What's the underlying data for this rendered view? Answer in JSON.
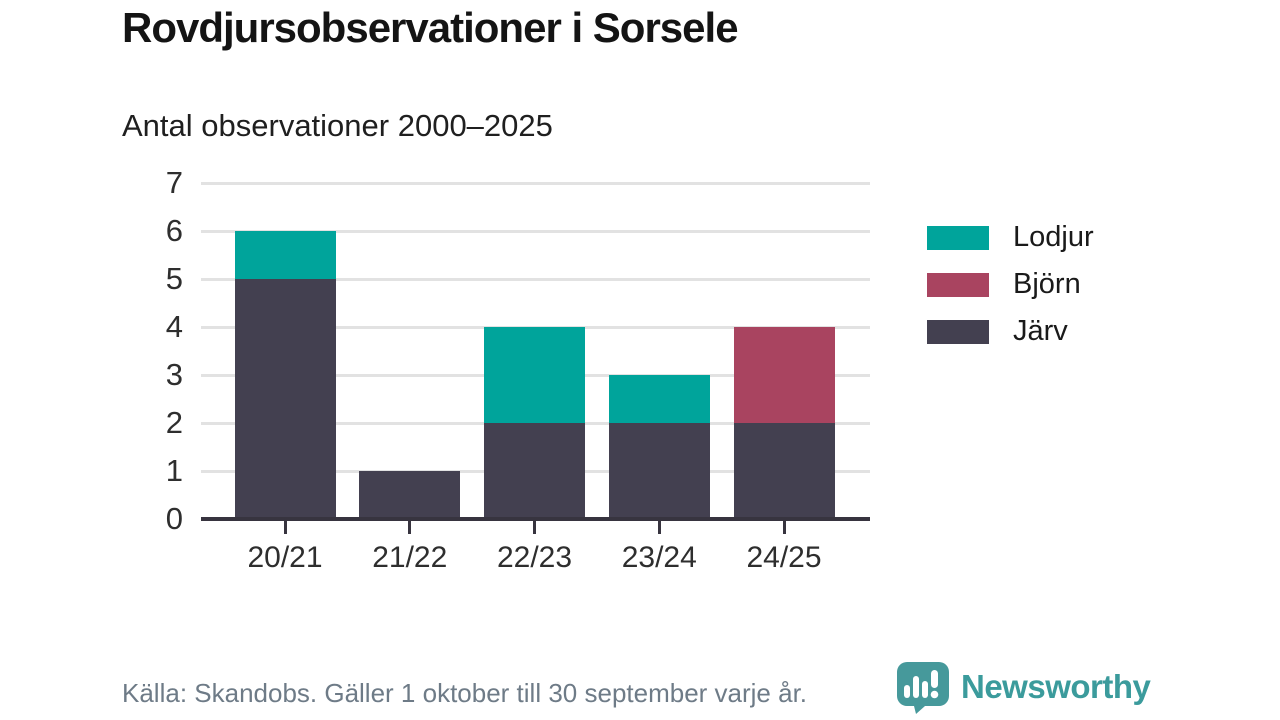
{
  "header": {
    "title": "Rovdjursobservationer i Sorsele",
    "subtitle": "Antal observationer 2000–2025"
  },
  "chart_data": {
    "type": "bar",
    "stacked": true,
    "title": "Rovdjursobservationer i Sorsele",
    "subtitle": "Antal observationer 2000–2025",
    "categories": [
      "20/21",
      "21/22",
      "22/23",
      "23/24",
      "24/25"
    ],
    "series": [
      {
        "name": "Lodjur",
        "color": "#00a49b",
        "values": [
          1,
          0,
          2,
          1,
          0
        ]
      },
      {
        "name": "Björn",
        "color": "#a94460",
        "values": [
          0,
          0,
          0,
          0,
          2
        ]
      },
      {
        "name": "Järv",
        "color": "#434050",
        "values": [
          5,
          1,
          2,
          2,
          2
        ]
      }
    ],
    "stack_order_bottom_to_top": [
      "Järv",
      "Björn",
      "Lodjur"
    ],
    "totals": [
      6,
      1,
      4,
      3,
      4
    ],
    "xlabel": "",
    "ylabel": "",
    "ylim": [
      0,
      7
    ],
    "yticks": [
      0,
      1,
      2,
      3,
      4,
      5,
      6,
      7
    ],
    "grid": true,
    "legend_position": "right"
  },
  "legend": {
    "items": [
      {
        "label": "Lodjur",
        "color": "#00a49b"
      },
      {
        "label": "Björn",
        "color": "#a94460"
      },
      {
        "label": "Järv",
        "color": "#434050"
      }
    ]
  },
  "footer": {
    "source": "Källa: Skandobs. Gäller 1 oktober till 30 september varje år.",
    "brand": "Newsworthy"
  },
  "colors": {
    "teal": "#00a49b",
    "maroon": "#a94460",
    "dark_slate": "#434050",
    "gridline": "#e2e2e2",
    "axis": "#37343f",
    "footer_text": "#6e7b87",
    "brand_teal": "#3b9b9c"
  },
  "icons": {
    "brand_logo": "newsworthy-speech-bubble-chart-icon"
  }
}
